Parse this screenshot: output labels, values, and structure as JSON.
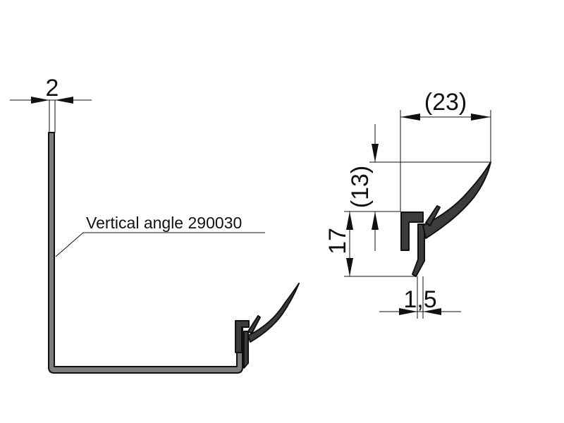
{
  "dimensions": {
    "thickness": "2",
    "width_23": "(23)",
    "height_13": "(13)",
    "height_17": "17",
    "gap_1_5": "1,5"
  },
  "callout": {
    "label": "Vertical angle 290030"
  },
  "colors": {
    "profile_fill": "#7d7d7d",
    "seal_fill": "#3c3c3c",
    "line": "#111111"
  }
}
